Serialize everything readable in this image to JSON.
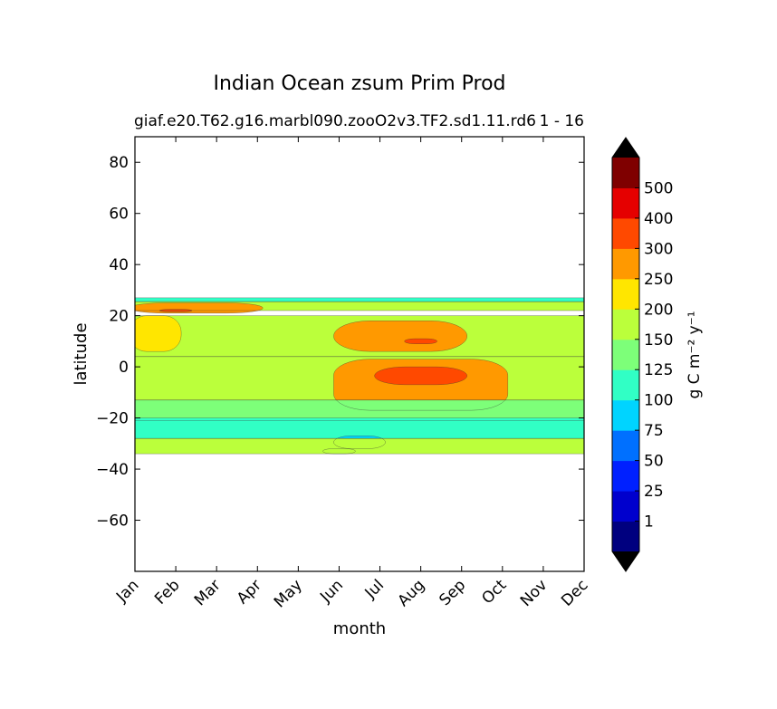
{
  "chart_data": {
    "type": "heatmap",
    "title": "Indian Ocean zsum Prim Prod",
    "subtitle_left": "giaf.e20.T62.g16.marbl090.zooO2v3.TF2.sd1.11.rd6",
    "subtitle_right": "1 - 16",
    "xlabel": "month",
    "ylabel": "latitude",
    "x_ticks": [
      "Jan",
      "Feb",
      "Mar",
      "Apr",
      "May",
      "Jun",
      "Jul",
      "Aug",
      "Sep",
      "Oct",
      "Nov",
      "Dec"
    ],
    "y_ticks": [
      80,
      60,
      40,
      20,
      0,
      -20,
      -40,
      -60
    ],
    "ylim": [
      -80,
      90
    ],
    "data_lat_range": [
      -34,
      27
    ],
    "colorbar": {
      "label": "g C m⁻² y⁻¹",
      "levels": [
        "1",
        "25",
        "50",
        "75",
        "100",
        "125",
        "150",
        "200",
        "250",
        "300",
        "400",
        "500"
      ],
      "colors": [
        "#00007f",
        "#0000cd",
        "#0020ff",
        "#0070ff",
        "#00d4ff",
        "#31ffc5",
        "#7dff79",
        "#bbff3b",
        "#ffe600",
        "#ff9900",
        "#ff4900",
        "#e50000",
        "#7f0000"
      ],
      "extend": "both"
    },
    "regions": [
      {
        "name": "band-n-edge",
        "value_class": 5,
        "lat": [
          25.5,
          27
        ]
      },
      {
        "name": "north-band",
        "value_class": 7,
        "lat": [
          22,
          25.5
        ]
      },
      {
        "name": "north-orange-patch",
        "value_class": 9,
        "month": [
          "Jan",
          "Apr"
        ],
        "lat": [
          21,
          25
        ]
      },
      {
        "name": "north-hotspot",
        "value_class": 10,
        "month": [
          "Feb"
        ],
        "lat": [
          21.5,
          22.5
        ]
      },
      {
        "name": "arabian-sea",
        "value_class": 7,
        "lat": [
          4,
          20
        ]
      },
      {
        "name": "west-yellow",
        "value_class": 8,
        "month": [
          "Jan",
          "Feb"
        ],
        "lat": [
          6,
          20
        ]
      },
      {
        "name": "summer-upwelling",
        "value_class": 9,
        "month": [
          "Jun",
          "Sep"
        ],
        "lat": [
          6,
          18
        ]
      },
      {
        "name": "summer-upwelling-core",
        "value_class": 10,
        "month": [
          "Aug"
        ],
        "lat": [
          9,
          11
        ]
      },
      {
        "name": "equatorial-band",
        "value_class": 7,
        "lat": [
          -13,
          4
        ]
      },
      {
        "name": "equatorial-summer",
        "value_class": 9,
        "month": [
          "Jun",
          "Oct"
        ],
        "lat": [
          -17,
          3
        ]
      },
      {
        "name": "equatorial-core",
        "value_class": 10,
        "month": [
          "Jul",
          "Sep"
        ],
        "lat": [
          -7,
          0
        ]
      },
      {
        "name": "south-green",
        "value_class": 6,
        "lat": [
          -21,
          -13
        ]
      },
      {
        "name": "south-teal",
        "value_class": 5,
        "lat": [
          -28,
          -20
        ]
      },
      {
        "name": "south-cyan-min",
        "value_class": 4,
        "month": [
          "Jun",
          "Jul"
        ],
        "lat": [
          -32,
          -27
        ]
      },
      {
        "name": "south-blue-min",
        "value_class": 3,
        "month": [
          "Jun"
        ],
        "lat": [
          -34,
          -32
        ]
      },
      {
        "name": "south-edge",
        "value_class": 7,
        "lat": [
          -34,
          -28
        ]
      }
    ]
  }
}
